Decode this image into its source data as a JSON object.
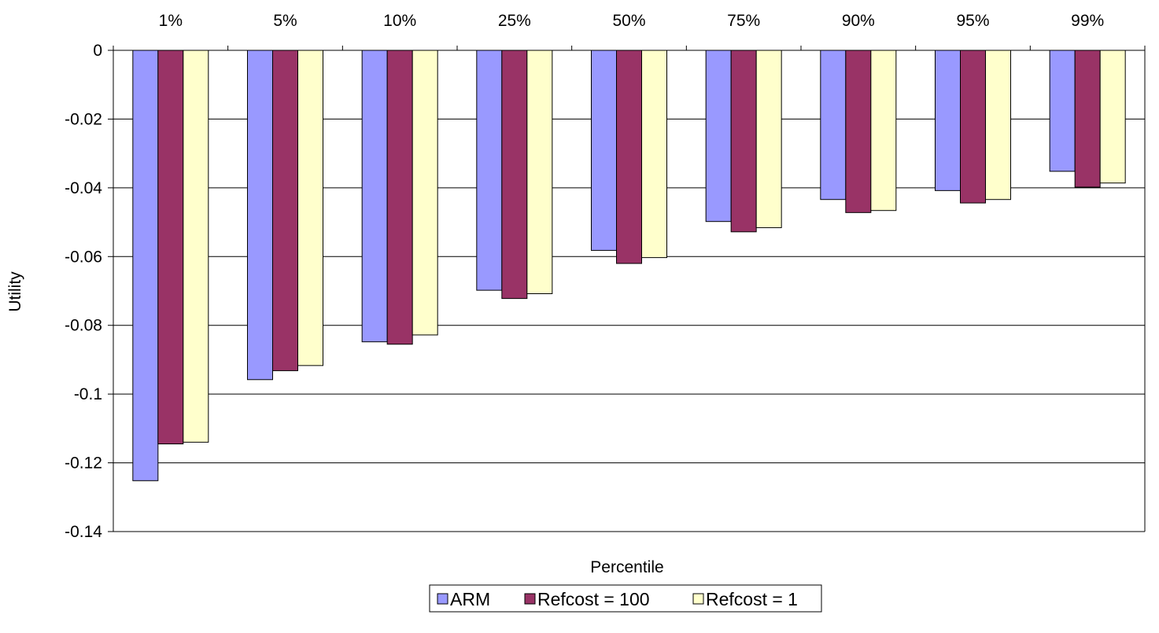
{
  "chart_data": {
    "type": "bar",
    "categories": [
      "1%",
      "5%",
      "10%",
      "25%",
      "50%",
      "75%",
      "90%",
      "95%",
      "99%"
    ],
    "series": [
      {
        "name": "ARM",
        "color": "#9999ff",
        "values": [
          -0.1252,
          -0.0958,
          -0.0848,
          -0.0698,
          -0.0582,
          -0.0498,
          -0.0434,
          -0.0408,
          -0.0352
        ]
      },
      {
        "name": "Refcost = 100",
        "color": "#993366",
        "values": [
          -0.1145,
          -0.0932,
          -0.0855,
          -0.0722,
          -0.062,
          -0.0528,
          -0.0472,
          -0.0444,
          -0.0398
        ]
      },
      {
        "name": "Refcost = 1",
        "color": "#ffffcc",
        "values": [
          -0.114,
          -0.0917,
          -0.0828,
          -0.0708,
          -0.0603,
          -0.0516,
          -0.0466,
          -0.0434,
          -0.0386
        ]
      }
    ],
    "xlabel": "Percentile",
    "ylabel": "Utility",
    "ylim": [
      -0.14,
      0
    ],
    "yticks": [
      "0",
      "-0.02",
      "-0.04",
      "-0.06",
      "-0.08",
      "-0.1",
      "-0.12",
      "-0.14"
    ],
    "grid": true,
    "legend_position": "bottom",
    "category_axis_position": "top"
  }
}
